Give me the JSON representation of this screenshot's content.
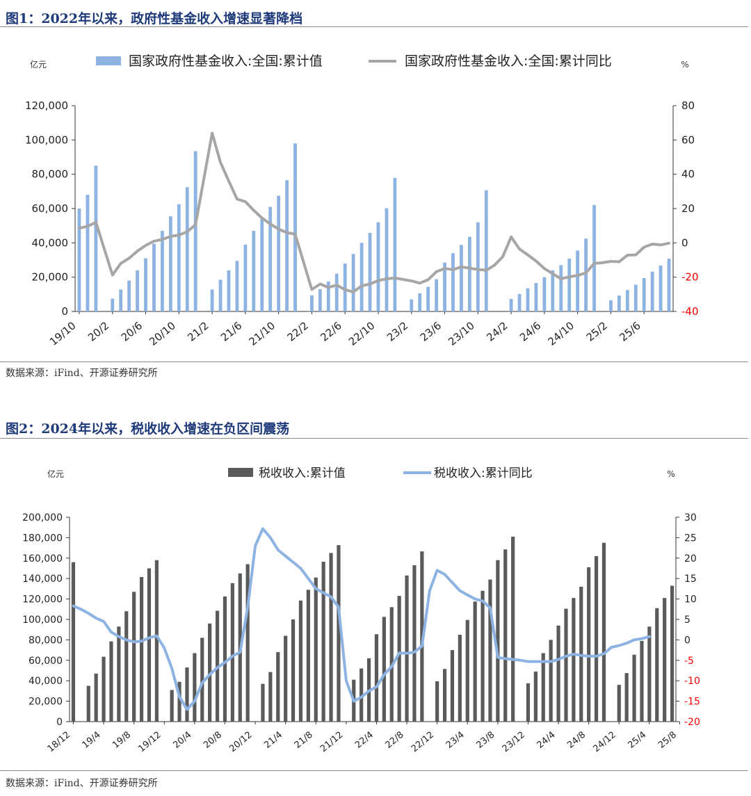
{
  "figures": [
    {
      "title": "图1：2022年以来，政府性基金收入增速显著降档",
      "source": "数据来源：iFind、开源证券研究所",
      "chart_data": {
        "type": "bar+line",
        "left_unit": "亿元",
        "right_unit": "%",
        "bar_color": "#8db3e2",
        "line_color": "#a6a6a6",
        "right_tick_color": "#ff0000",
        "legend": [
          "国家政府性基金收入:全国:累计值",
          "国家政府性基金收入:全国:累计同比"
        ],
        "left_axis": {
          "min": 0,
          "max": 120000,
          "ticks": [
            "0",
            "20,000",
            "40,000",
            "60,000",
            "80,000",
            "100,000",
            "120,000"
          ]
        },
        "right_axis": {
          "min": -40,
          "max": 80,
          "ticks": [
            "-40",
            "-20",
            "0",
            "20",
            "40",
            "60",
            "80"
          ]
        },
        "x_labels": [
          "19/10",
          "20/2",
          "20/6",
          "20/10",
          "21/2",
          "21/6",
          "21/10",
          "22/2",
          "22/6",
          "22/10",
          "23/2",
          "23/6",
          "23/10",
          "24/2",
          "24/6",
          "24/10",
          "25/2",
          "25/6"
        ],
        "x_label_every": 4,
        "bar_values": [
          60000,
          68000,
          85000,
          null,
          7500,
          12800,
          18000,
          24000,
          31000,
          39500,
          47000,
          55500,
          62500,
          72500,
          93500,
          null,
          12800,
          18500,
          24000,
          29500,
          39000,
          47000,
          54000,
          61000,
          67500,
          76500,
          98000,
          null,
          9400,
          13000,
          17400,
          22000,
          28000,
          33500,
          40000,
          45800,
          52000,
          60200,
          77900,
          null,
          7000,
          10600,
          14400,
          18800,
          28500,
          34000,
          38800,
          43500,
          52000,
          70700,
          null,
          null,
          7300,
          10200,
          13500,
          16600,
          20000,
          24000,
          27000,
          30800,
          35500,
          42500,
          62100,
          null,
          6500,
          9300,
          12500,
          15600,
          19500,
          23200,
          26800,
          30800
        ],
        "line_values": [
          8.6,
          9.6,
          12.0,
          null,
          -18.8,
          -12.0,
          -9.0,
          -4.8,
          -1.5,
          1.0,
          2.0,
          3.8,
          4.5,
          6.5,
          10.6,
          null,
          64.0,
          47.0,
          36.0,
          25.5,
          24.0,
          19.0,
          14.5,
          11.0,
          8.0,
          6.0,
          5.0,
          null,
          -27.2,
          -24.0,
          -26.0,
          -24.6,
          -27.3,
          -28.6,
          -25.1,
          -24.0,
          -22.0,
          -21.0,
          -20.5,
          null,
          -22.2,
          -23.5,
          -21.5,
          -16.8,
          -15.0,
          -15.6,
          -14.0,
          -14.8,
          -15.5,
          -16.0,
          -13.0,
          -8.0,
          3.5,
          -3.6,
          -7.0,
          -10.6,
          -15.0,
          -18.0,
          -21.0,
          -19.8,
          -19.0,
          -17.5,
          -12.0,
          -11.6,
          -10.8,
          -11.0,
          -7.2,
          -7.0,
          -2.5,
          -0.7,
          -1.2,
          -0.2
        ]
      }
    },
    {
      "title": "图2：2024年以来，税收收入增速在负区间震荡",
      "source": "数据来源：iFind、开源证券研究所",
      "chart_data": {
        "type": "bar+line",
        "left_unit": "亿元",
        "right_unit": "%",
        "bar_color": "#5a5a5a",
        "line_color": "#8db3e2",
        "right_tick_color": "#ff0000",
        "legend": [
          "税收收入:累计值",
          "税收收入:累计同比"
        ],
        "left_axis": {
          "min": 0,
          "max": 200000,
          "ticks": [
            "0",
            "20,000",
            "40,000",
            "60,000",
            "80,000",
            "100,000",
            "120,000",
            "140,000",
            "160,000",
            "180,000",
            "200,000"
          ]
        },
        "right_axis": {
          "min": -20,
          "max": 30,
          "ticks": [
            "-20",
            "-15",
            "-10",
            "-5",
            "0",
            "5",
            "10",
            "15",
            "20",
            "25",
            "30"
          ]
        },
        "x_labels": [
          "18/12",
          "19/4",
          "19/8",
          "19/12",
          "20/4",
          "20/8",
          "20/12",
          "21/4",
          "21/8",
          "21/12",
          "22/4",
          "22/8",
          "22/12",
          "23/4",
          "23/8",
          "23/12",
          "24/4",
          "24/8",
          "24/12",
          "25/4",
          "25/8"
        ],
        "x_label_every": 4,
        "bar_values": [
          156000,
          null,
          35000,
          47000,
          63500,
          78500,
          93000,
          108000,
          127000,
          141500,
          150000,
          158000,
          null,
          31000,
          39000,
          53000,
          67000,
          82000,
          96000,
          108500,
          122500,
          135500,
          145000,
          154000,
          null,
          37000,
          48500,
          68000,
          84000,
          100000,
          118500,
          129000,
          141000,
          156500,
          165000,
          172700,
          null,
          41000,
          52000,
          62000,
          85500,
          102500,
          112000,
          123000,
          143000,
          153000,
          166600,
          null,
          39500,
          51500,
          70000,
          85000,
          99500,
          117500,
          128000,
          139000,
          158000,
          168500,
          181000,
          null,
          37500,
          49000,
          67000,
          80000,
          94000,
          110500,
          121000,
          132000,
          151000,
          162000,
          175000,
          null,
          36000,
          47500,
          65500,
          79000,
          93000,
          111000,
          121000,
          133000
        ],
        "line_values": [
          8.3,
          7.5,
          6.5,
          5.3,
          4.5,
          1.9,
          0.8,
          0.0,
          -0.5,
          -0.3,
          0.5,
          1.0,
          -2.0,
          -7.0,
          -14.0,
          -17.0,
          -15.0,
          -10.5,
          -8.5,
          -6.8,
          -5.5,
          -4.0,
          -3.0,
          8.0,
          23.0,
          27.2,
          25.0,
          22.0,
          20.5,
          19.0,
          17.5,
          15.0,
          12.5,
          11.5,
          10.5,
          8.0,
          -10.0,
          -15.0,
          -14.0,
          -12.5,
          -11.5,
          -8.5,
          -6.5,
          -3.2,
          -3.3,
          -3.0,
          -1.5,
          12.0,
          17.0,
          16.0,
          14.0,
          12.0,
          11.0,
          10.0,
          9.5,
          7.8,
          -4.3,
          -4.6,
          -4.8,
          -5.0,
          -5.3,
          -5.3,
          -5.3,
          -5.3,
          -4.8,
          -4.0,
          -3.5,
          -3.8,
          -4.0,
          -4.0,
          -3.4,
          -1.8,
          -1.4,
          -0.8,
          0.0,
          0.3,
          0.8
        ]
      }
    }
  ]
}
